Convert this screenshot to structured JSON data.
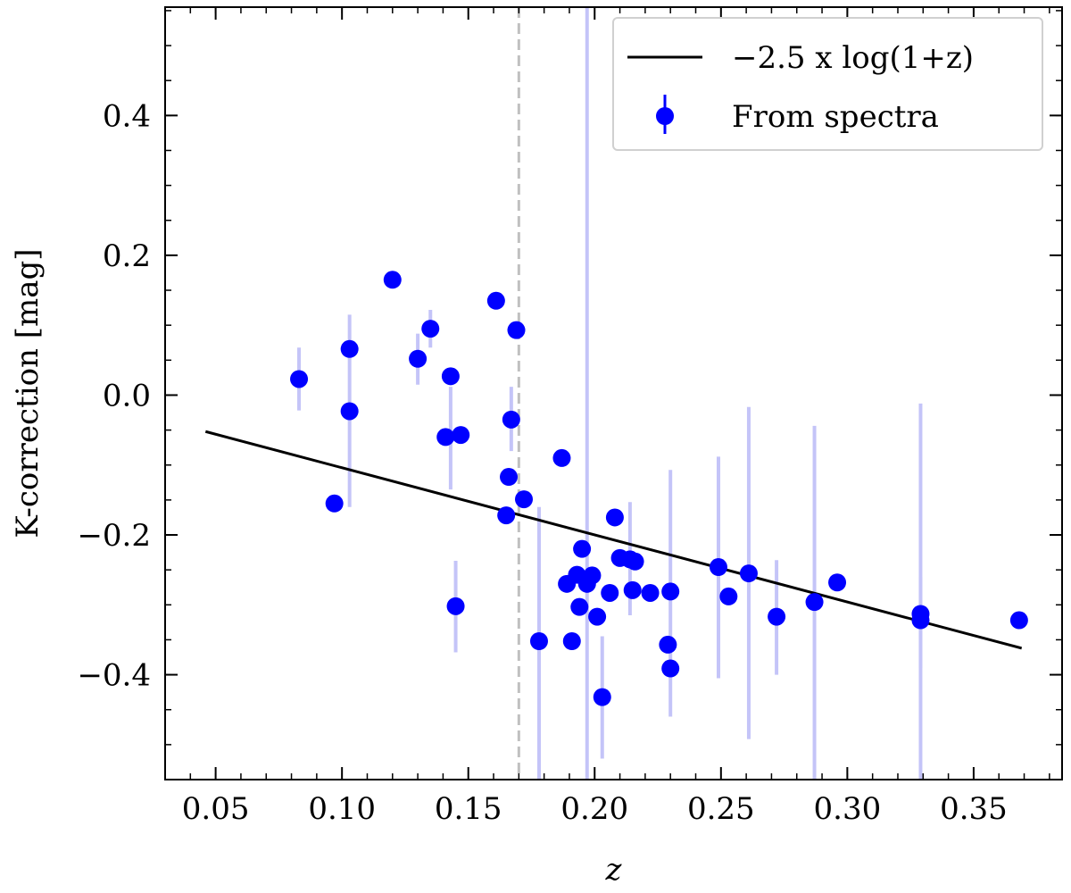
{
  "chart_data": {
    "type": "scatter",
    "xlabel": "z",
    "ylabel": "K-correction [mag]",
    "xlim": [
      0.03,
      0.385
    ],
    "ylim": [
      -0.55,
      0.555
    ],
    "x_ticks": [
      0.05,
      0.1,
      0.15,
      0.2,
      0.25,
      0.3,
      0.35
    ],
    "x_tick_labels": [
      "0.05",
      "0.10",
      "0.15",
      "0.20",
      "0.25",
      "0.30",
      "0.35"
    ],
    "x_minor_step": 0.01,
    "y_ticks": [
      -0.4,
      -0.2,
      0.0,
      0.2,
      0.4
    ],
    "y_tick_labels": [
      "−0.4",
      "−0.2",
      "0.0",
      "0.2",
      "0.4"
    ],
    "y_minor_step": 0.05,
    "grid": false,
    "legend_position": "top-right",
    "vline": {
      "x": 0.17,
      "color": "#c0c0c0",
      "style": "dashed"
    },
    "series": [
      {
        "name": "−2.5 x log(1+z)",
        "kind": "line",
        "color": "#000000",
        "x": [
          0.046,
          0.369
        ],
        "y": [
          -0.0521,
          -0.3621
        ]
      },
      {
        "name": "From spectra",
        "kind": "errorbar",
        "color": "#0000ff",
        "errcolor": "#c4c4f8",
        "points": [
          {
            "x": 0.083,
            "y": 0.023,
            "lo": -0.022,
            "hi": 0.068
          },
          {
            "x": 0.097,
            "y": -0.155
          },
          {
            "x": 0.103,
            "y": 0.066,
            "lo": -0.16,
            "hi": 0.115
          },
          {
            "x": 0.103,
            "y": -0.023
          },
          {
            "x": 0.12,
            "y": 0.165
          },
          {
            "x": 0.13,
            "y": 0.052,
            "lo": 0.015,
            "hi": 0.088
          },
          {
            "x": 0.135,
            "y": 0.095,
            "lo": 0.068,
            "hi": 0.122
          },
          {
            "x": 0.141,
            "y": -0.06
          },
          {
            "x": 0.143,
            "y": 0.027,
            "lo": -0.135,
            "hi": 0.012
          },
          {
            "x": 0.145,
            "y": -0.302,
            "lo": -0.368,
            "hi": -0.237
          },
          {
            "x": 0.147,
            "y": -0.057
          },
          {
            "x": 0.161,
            "y": 0.135
          },
          {
            "x": 0.165,
            "y": -0.172
          },
          {
            "x": 0.166,
            "y": -0.117
          },
          {
            "x": 0.167,
            "y": -0.035,
            "lo": -0.08,
            "hi": 0.012
          },
          {
            "x": 0.169,
            "y": 0.093
          },
          {
            "x": 0.172,
            "y": -0.149
          },
          {
            "x": 0.178,
            "y": -0.352,
            "lo": -0.55,
            "hi": -0.16
          },
          {
            "x": 0.187,
            "y": -0.09
          },
          {
            "x": 0.189,
            "y": -0.27
          },
          {
            "x": 0.191,
            "y": -0.352
          },
          {
            "x": 0.193,
            "y": -0.257
          },
          {
            "x": 0.194,
            "y": -0.303
          },
          {
            "x": 0.195,
            "y": -0.22
          },
          {
            "x": 0.197,
            "y": -0.27,
            "lo": -0.55,
            "hi": 0.555
          },
          {
            "x": 0.199,
            "y": -0.258
          },
          {
            "x": 0.201,
            "y": -0.317
          },
          {
            "x": 0.203,
            "y": -0.432,
            "lo": -0.52,
            "hi": -0.345
          },
          {
            "x": 0.206,
            "y": -0.283
          },
          {
            "x": 0.208,
            "y": -0.175
          },
          {
            "x": 0.21,
            "y": -0.233
          },
          {
            "x": 0.214,
            "y": -0.235,
            "lo": -0.315,
            "hi": -0.153
          },
          {
            "x": 0.215,
            "y": -0.279
          },
          {
            "x": 0.216,
            "y": -0.238
          },
          {
            "x": 0.222,
            "y": -0.283
          },
          {
            "x": 0.229,
            "y": -0.357
          },
          {
            "x": 0.23,
            "y": -0.281,
            "lo": -0.46,
            "hi": -0.107
          },
          {
            "x": 0.23,
            "y": -0.391
          },
          {
            "x": 0.249,
            "y": -0.246,
            "lo": -0.405,
            "hi": -0.088
          },
          {
            "x": 0.253,
            "y": -0.288
          },
          {
            "x": 0.261,
            "y": -0.255,
            "lo": -0.492,
            "hi": -0.017
          },
          {
            "x": 0.272,
            "y": -0.317,
            "lo": -0.4,
            "hi": -0.236
          },
          {
            "x": 0.287,
            "y": -0.296,
            "lo": -0.55,
            "hi": -0.044
          },
          {
            "x": 0.296,
            "y": -0.268
          },
          {
            "x": 0.329,
            "y": -0.322,
            "lo": -0.39,
            "hi": -0.26
          },
          {
            "x": 0.329,
            "y": -0.313,
            "lo": -0.55,
            "hi": -0.012
          },
          {
            "x": 0.368,
            "y": -0.322
          }
        ]
      }
    ]
  }
}
